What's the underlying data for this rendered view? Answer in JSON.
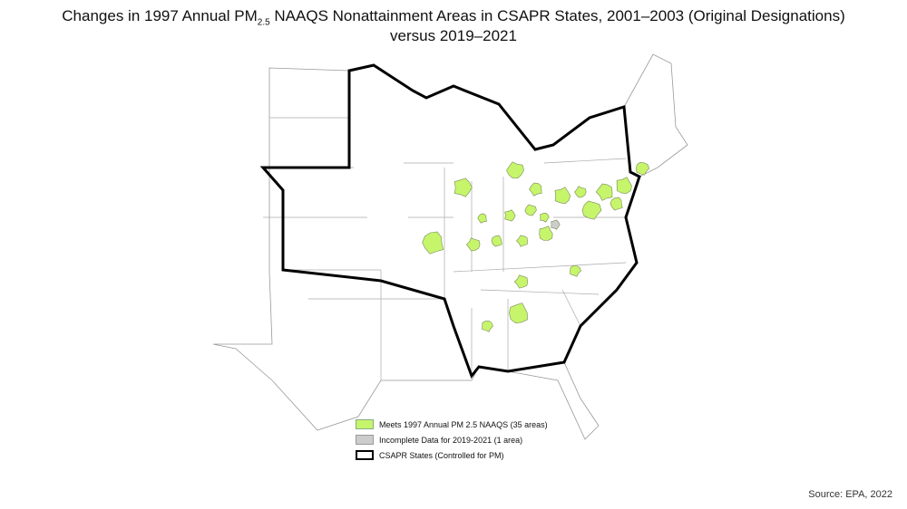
{
  "title": {
    "before_subscript": "Changes in 1997 Annual PM",
    "subscript": "2.5",
    "after_subscript": " NAAQS Nonattainment Areas in CSAPR States, 2001–2003 (Original Designations)",
    "line2": "versus 2019–2021"
  },
  "legend": {
    "items": [
      {
        "label": "Meets 1997 Annual PM 2.5 NAAQS (35 areas)"
      },
      {
        "label": "Incomplete Data for 2019-2021 (1 area)"
      },
      {
        "label": "CSAPR States (Controlled for PM)"
      }
    ]
  },
  "source": "Source: EPA, 2022"
}
